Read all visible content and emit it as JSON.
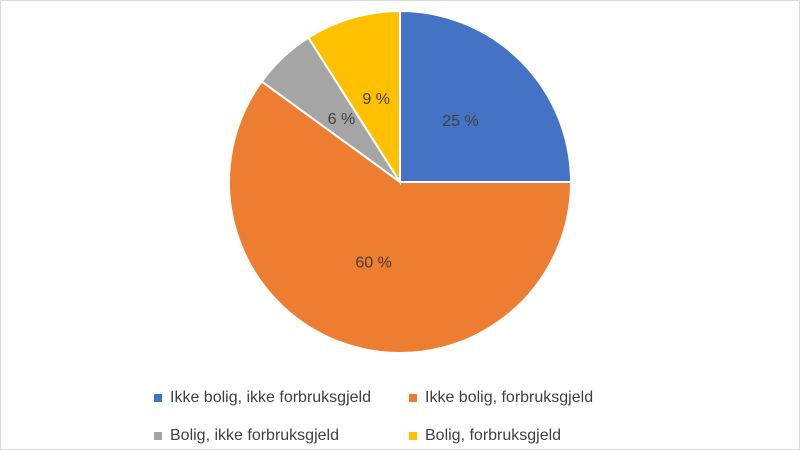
{
  "chart_data": {
    "type": "pie",
    "categories": [
      "Ikke bolig, ikke forbruksgjeld",
      "Ikke bolig, forbruksgjeld",
      "Bolig, ikke forbruksgjeld",
      "Bolig, forbruksgjeld"
    ],
    "values": [
      25,
      60,
      6,
      9
    ],
    "value_labels": [
      "25 %",
      "60 %",
      "6 %",
      "9 %"
    ],
    "colors": [
      "#4472c4",
      "#ed7d31",
      "#a5a5a5",
      "#ffc000"
    ],
    "legend": "bottom"
  }
}
